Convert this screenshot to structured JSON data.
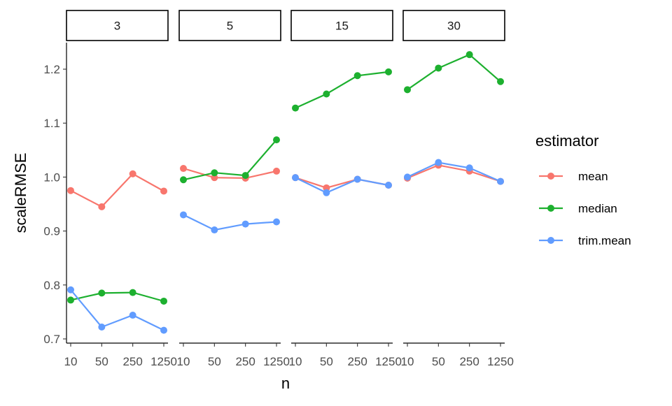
{
  "chart_data": {
    "type": "line",
    "xlabel": "n",
    "ylabel": "scaleRMSE",
    "x": [
      "10",
      "50",
      "250",
      "1250"
    ],
    "ylim": [
      0.69,
      1.25
    ],
    "yticks": [
      0.7,
      0.8,
      0.9,
      1.0,
      1.1,
      1.2
    ],
    "ytick_labels": [
      "0.7",
      "0.8",
      "0.9",
      "1.0",
      "1.1",
      "1.2"
    ],
    "grid": false,
    "legend": {
      "title": "estimator",
      "placement": "right"
    },
    "facets": [
      {
        "label": "3",
        "series": [
          {
            "name": "mean",
            "values": [
              0.975,
              0.945,
              1.006,
              0.974
            ]
          },
          {
            "name": "median",
            "values": [
              0.772,
              0.785,
              0.786,
              0.77
            ]
          },
          {
            "name": "trim.mean",
            "values": [
              0.791,
              0.722,
              0.744,
              0.716
            ]
          }
        ]
      },
      {
        "label": "5",
        "series": [
          {
            "name": "mean",
            "values": [
              1.016,
              0.999,
              0.998,
              1.011
            ]
          },
          {
            "name": "median",
            "values": [
              0.995,
              1.008,
              1.003,
              1.069
            ]
          },
          {
            "name": "trim.mean",
            "values": [
              0.93,
              0.902,
              0.913,
              0.917
            ]
          }
        ]
      },
      {
        "label": "15",
        "series": [
          {
            "name": "mean",
            "values": [
              0.999,
              0.98,
              0.996,
              0.985
            ]
          },
          {
            "name": "median",
            "values": [
              1.128,
              1.154,
              1.188,
              1.195
            ]
          },
          {
            "name": "trim.mean",
            "values": [
              0.999,
              0.971,
              0.996,
              0.985
            ]
          }
        ]
      },
      {
        "label": "30",
        "series": [
          {
            "name": "mean",
            "values": [
              0.998,
              1.022,
              1.011,
              0.992
            ]
          },
          {
            "name": "median",
            "values": [
              1.162,
              1.202,
              1.227,
              1.177
            ]
          },
          {
            "name": "trim.mean",
            "values": [
              1.0,
              1.027,
              1.017,
              0.992
            ]
          }
        ]
      }
    ],
    "series_colors": {
      "mean": "#F8766D",
      "median": "#1DB02F",
      "trim.mean": "#619CFF"
    }
  }
}
